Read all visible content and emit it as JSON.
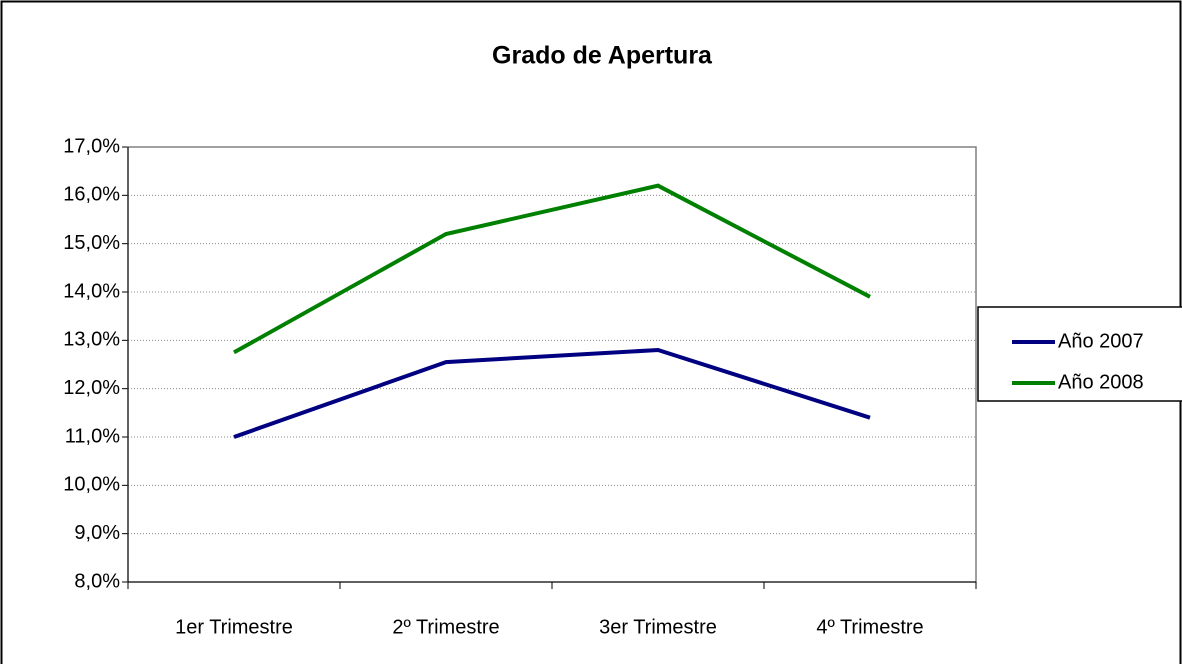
{
  "chart_data": {
    "type": "line",
    "title": "Grado de Apertura",
    "categories": [
      "1er Trimestre",
      "2º Trimestre",
      "3er Trimestre",
      "4º Trimestre"
    ],
    "series": [
      {
        "name": "Año 2007",
        "color": "#000080",
        "values": [
          11.0,
          12.55,
          12.8,
          11.4
        ]
      },
      {
        "name": "Año 2008",
        "color": "#008000",
        "values": [
          12.75,
          15.2,
          16.2,
          13.9
        ]
      }
    ],
    "ylim": [
      8,
      17
    ],
    "yticks": [
      {
        "value": 8,
        "label": "8,0%"
      },
      {
        "value": 9,
        "label": "9,0%"
      },
      {
        "value": 10,
        "label": "10,0%"
      },
      {
        "value": 11,
        "label": "11,0%"
      },
      {
        "value": 12,
        "label": "12,0%"
      },
      {
        "value": 13,
        "label": "13,0%"
      },
      {
        "value": 14,
        "label": "14,0%"
      },
      {
        "value": 15,
        "label": "15,0%"
      },
      {
        "value": 16,
        "label": "16,0%"
      },
      {
        "value": 17,
        "label": "17,0%"
      }
    ],
    "grid": true,
    "legend": "right"
  }
}
